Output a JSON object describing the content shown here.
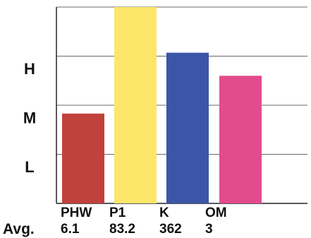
{
  "chart_data": {
    "type": "bar",
    "title": "",
    "xlabel": "",
    "ylabel": "",
    "y_levels": [
      "L",
      "M",
      "H"
    ],
    "ylim": [
      0,
      4
    ],
    "grid": true,
    "categories": [
      "PHW",
      "P1",
      "K",
      "OM"
    ],
    "values": [
      1.83,
      4.0,
      3.07,
      2.6
    ],
    "bar_colors": [
      "#c1413b",
      "#fbe66a",
      "#3c55a7",
      "#e34c8c"
    ],
    "avg_label": "Avg.",
    "avg_values": [
      "6.1",
      "83.2",
      "362",
      "3"
    ]
  }
}
